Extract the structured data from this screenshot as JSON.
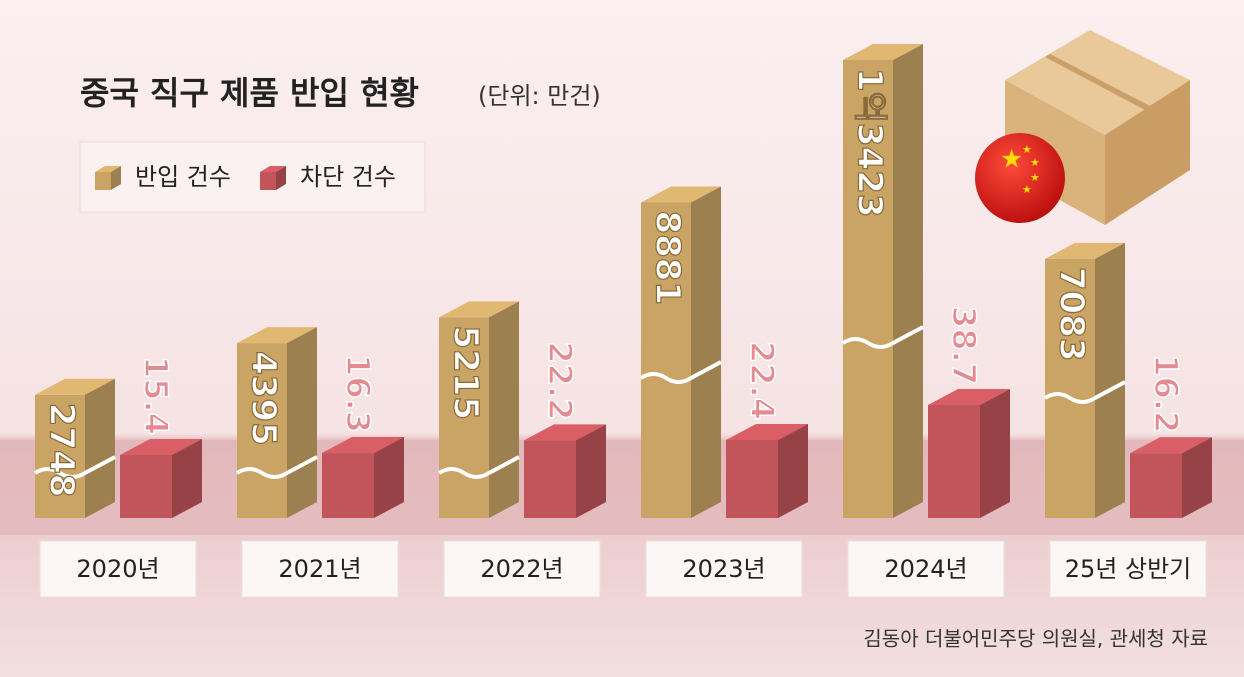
{
  "chart_data": {
    "type": "bar",
    "title": "중국 직구 제품 반입 현황",
    "subtitle": "(단위: 만건)",
    "categories": [
      "2020년",
      "2021년",
      "2022년",
      "2023년",
      "2024년",
      "25년 상반기"
    ],
    "series": [
      {
        "name": "반입 건수",
        "color": "#c9a465",
        "values": [
          2748,
          4395,
          5215,
          8881,
          13423,
          7083
        ],
        "value_labels": [
          "2748",
          "4395",
          "5215",
          "8881",
          "1억3423",
          "7083"
        ]
      },
      {
        "name": "차단 건수",
        "color": "#c2545b",
        "values": [
          15.4,
          16.3,
          22.2,
          22.4,
          38.7,
          16.2
        ]
      }
    ],
    "source": "김동아 더불어민주당 의원실, 관세청 자료"
  }
}
